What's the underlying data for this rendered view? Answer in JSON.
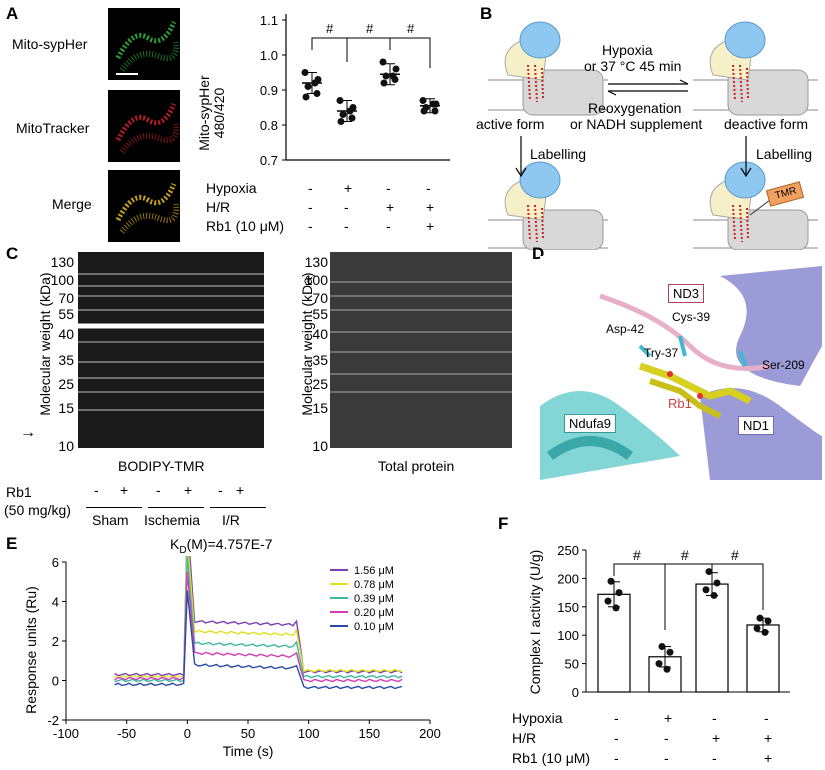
{
  "panels": {
    "A": {
      "letter": "A",
      "image_labels": [
        "Mito-sypHer",
        "MitoTracker",
        "Merge"
      ],
      "chart": {
        "ylabel_line1": "Mito-sypHer",
        "ylabel_line2": "480/420",
        "ticks": [
          "1.1",
          "1.0",
          "0.9",
          "0.8",
          "0.7"
        ],
        "sig": [
          "#",
          "#",
          "#"
        ],
        "cond_labels": [
          "Hypoxia",
          "H/R",
          "Rb1 (10 μM)"
        ],
        "signs": [
          [
            "-",
            "+",
            "-",
            "-"
          ],
          [
            "-",
            "-",
            "+",
            "+"
          ],
          [
            "-",
            "-",
            "-",
            "+"
          ]
        ]
      }
    },
    "B": {
      "letter": "B",
      "arrow_top_line1": "Hypoxia",
      "arrow_top_line2": "or 37 °C 45 min",
      "arrow_bottom_line1": "Reoxygenation",
      "arrow_bottom_line2": "or NADH supplement",
      "left_state": "active form",
      "right_state": "deactive form",
      "labelling_left": "Labelling",
      "labelling_right": "Labelling",
      "tag": "TMR"
    },
    "C": {
      "letter": "C",
      "ylabel": "Molecular weight (kDa)",
      "markers": [
        "130",
        "100",
        "70",
        "55",
        "40",
        "35",
        "25",
        "15",
        "10"
      ],
      "gel1_title": "BODIPY-TMR",
      "gel2_title": "Total protein",
      "rb1_label": "Rb1",
      "dose_label": "(50 mg/kg)",
      "lane_signs": [
        "-",
        "+",
        "-",
        "+",
        "-",
        "+"
      ],
      "groups": [
        "Sham",
        "Ischemia",
        "I/R"
      ]
    },
    "D": {
      "letter": "D",
      "labels": {
        "nd3": "ND3",
        "nd1": "ND1",
        "ndufa9": "Ndufa9",
        "cys39": "Cys-39",
        "asp42": "Asp-42",
        "try37": "Try-37",
        "ser209": "Ser-209",
        "rb1": "Rb1"
      }
    },
    "E": {
      "letter": "E",
      "kd_prefix": "K",
      "kd_sub": "D",
      "kd_suffix": "(M)=4.757E-7"
    },
    "F": {
      "letter": "F",
      "sig": [
        "#",
        "#",
        "#"
      ],
      "cond_labels": [
        "Hypoxia",
        "H/R",
        "Rb1 (10 μM)"
      ],
      "signs": [
        [
          "-",
          "+",
          "-",
          "-"
        ],
        [
          "-",
          "-",
          "+",
          "+"
        ],
        [
          "-",
          "-",
          "-",
          "+"
        ]
      ]
    }
  },
  "chart_data": [
    {
      "type": "scatter",
      "panel": "A",
      "title": "",
      "xlabel": "",
      "ylabel": "Mito-sypHer 480/420",
      "ylim": [
        0.7,
        1.1
      ],
      "groups": [
        {
          "mean": 0.92,
          "sd": 0.03,
          "points": [
            0.95,
            0.93,
            0.91,
            0.89,
            0.88,
            0.92
          ]
        },
        {
          "mean": 0.84,
          "sd": 0.03,
          "points": [
            0.87,
            0.85,
            0.83,
            0.82,
            0.81,
            0.84
          ]
        },
        {
          "mean": 0.945,
          "sd": 0.03,
          "points": [
            0.98,
            0.96,
            0.94,
            0.93,
            0.92,
            0.94
          ]
        },
        {
          "mean": 0.855,
          "sd": 0.02,
          "points": [
            0.87,
            0.86,
            0.85,
            0.84,
            0.84,
            0.86
          ]
        }
      ]
    },
    {
      "type": "line",
      "panel": "E",
      "title": "",
      "xlabel": "Time (s)",
      "ylabel": "Response units (Ru)",
      "xlim": [
        -100,
        200
      ],
      "ylim": [
        -2,
        6
      ],
      "x_ticks": [
        "-100",
        "-50",
        "0",
        "50",
        "100",
        "150",
        "200"
      ],
      "y_ticks": [
        "6",
        "4",
        "2",
        "0",
        "-2"
      ],
      "legend_position": "top-right",
      "series": [
        {
          "name": "1.56 μM",
          "color": "#7b3fb6",
          "baseline": 0.3,
          "association": 3.0,
          "dissociation": 0.45
        },
        {
          "name": "0.78 μM",
          "color": "#e0e020",
          "baseline": 0.2,
          "association": 2.5,
          "dissociation": 0.5
        },
        {
          "name": "0.39 μM",
          "color": "#3cb8a0",
          "baseline": 0.0,
          "association": 1.9,
          "dissociation": 0.2
        },
        {
          "name": "0.20 μM",
          "color": "#d040b0",
          "baseline": 0.1,
          "association": 1.4,
          "dissociation": 0.0
        },
        {
          "name": "0.10 μM",
          "color": "#2a4aa8",
          "baseline": -0.2,
          "association": 0.8,
          "dissociation": -0.35
        }
      ]
    },
    {
      "type": "bar",
      "panel": "F",
      "title": "",
      "xlabel": "",
      "ylabel": "Complex I activity (U/g)",
      "ylim": [
        0,
        250
      ],
      "y_ticks": [
        "250",
        "200",
        "150",
        "100",
        "50",
        "0"
      ],
      "values": [
        172,
        62,
        190,
        118
      ],
      "errors": [
        22,
        18,
        20,
        12
      ],
      "points": [
        [
          195,
          175,
          160,
          148
        ],
        [
          80,
          70,
          50,
          40
        ],
        [
          212,
          192,
          180,
          170
        ],
        [
          130,
          125,
          112,
          105
        ]
      ]
    }
  ]
}
